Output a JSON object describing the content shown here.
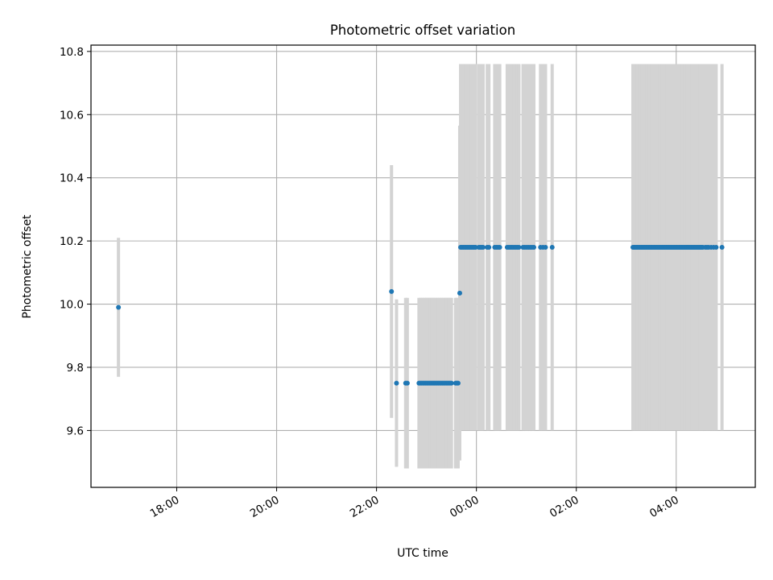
{
  "chart_data": {
    "type": "scatter",
    "title": "Photometric offset variation",
    "xlabel": "UTC time",
    "ylabel": "Photometric offset",
    "x_unit": "UTC time (HH:MM)",
    "xlim": [
      "16:17",
      "05:35 (next day)"
    ],
    "ylim": [
      9.42,
      10.82
    ],
    "x_ticks": [
      "18:00",
      "20:00",
      "22:00",
      "00:00",
      "02:00",
      "04:00"
    ],
    "y_ticks": [
      9.6,
      9.8,
      10.0,
      10.2,
      10.4,
      10.6,
      10.8
    ],
    "grid": true,
    "error_bar_color": "#d3d3d3",
    "point_color": "#1f77b4",
    "clusters": [
      {
        "start": "16:50",
        "end": "16:50",
        "count": 1,
        "y": 9.99,
        "err": 0.22
      },
      {
        "start": "22:18",
        "end": "22:18",
        "count": 1,
        "y": 10.04,
        "err": 0.4
      },
      {
        "start": "22:24",
        "end": "22:24",
        "count": 1,
        "y": 9.75,
        "err": 0.265
      },
      {
        "start": "22:35",
        "end": "22:37",
        "count": 2,
        "y": 9.75,
        "err": 0.27
      },
      {
        "start": "22:51",
        "end": "23:30",
        "count": 26,
        "y": 9.75,
        "err": 0.27
      },
      {
        "start": "23:35",
        "end": "23:38",
        "count": 3,
        "y": 9.75,
        "err": 0.27
      },
      {
        "start": "23:40",
        "end": "23:40",
        "count": 1,
        "y": 10.035,
        "err": 0.53
      },
      {
        "start": "23:41",
        "end": "23:59",
        "count": 12,
        "y": 10.18,
        "err": 0.58
      },
      {
        "start": "00:03",
        "end": "00:08",
        "count": 4,
        "y": 10.18,
        "err": 0.58
      },
      {
        "start": "00:13",
        "end": "00:15",
        "count": 2,
        "y": 10.18,
        "err": 0.58
      },
      {
        "start": "00:22",
        "end": "00:28",
        "count": 4,
        "y": 10.18,
        "err": 0.58
      },
      {
        "start": "00:37",
        "end": "00:51",
        "count": 8,
        "y": 10.18,
        "err": 0.58
      },
      {
        "start": "00:56",
        "end": "01:09",
        "count": 7,
        "y": 10.18,
        "err": 0.58
      },
      {
        "start": "01:17",
        "end": "01:23",
        "count": 3,
        "y": 10.18,
        "err": 0.58
      },
      {
        "start": "01:31",
        "end": "01:31",
        "count": 1,
        "y": 10.18,
        "err": 0.58
      },
      {
        "start": "03:08",
        "end": "04:32",
        "count": 60,
        "y": 10.18,
        "err": 0.58
      },
      {
        "start": "04:35",
        "end": "04:39",
        "count": 3,
        "y": 10.18,
        "err": 0.58
      },
      {
        "start": "04:42",
        "end": "04:48",
        "count": 3,
        "y": 10.18,
        "err": 0.58
      },
      {
        "start": "04:55",
        "end": "04:55",
        "count": 1,
        "y": 10.18,
        "err": 0.58
      }
    ]
  }
}
